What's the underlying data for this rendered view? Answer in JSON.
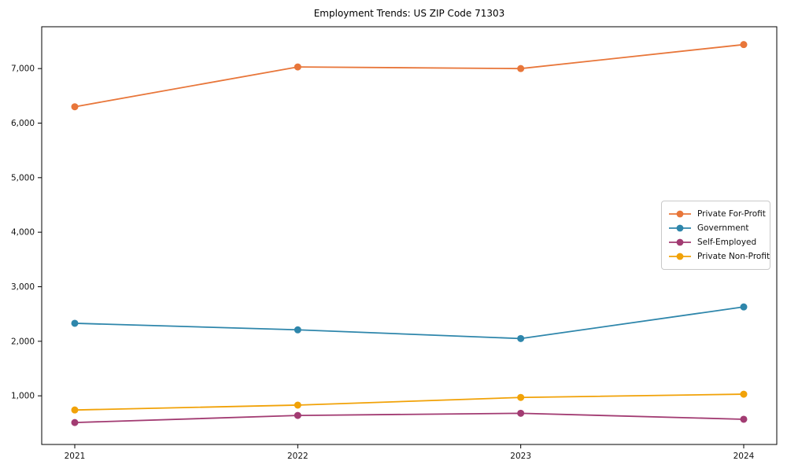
{
  "chart_data": {
    "type": "line",
    "title": "Employment Trends: US ZIP Code 71303",
    "xlabel": "",
    "ylabel": "",
    "grid": false,
    "background": "#ffffff",
    "legend_position": "right-center-inside",
    "x": [
      2021,
      2022,
      2023,
      2024
    ],
    "x_tick_labels": [
      "2021",
      "2022",
      "2023",
      "2024"
    ],
    "ylim": [
      108,
      7767
    ],
    "yticks": [
      1000,
      2000,
      3000,
      4000,
      5000,
      6000,
      7000
    ],
    "ytick_labels": [
      "1,000",
      "2,000",
      "3,000",
      "4,000",
      "5,000",
      "6,000",
      "7,000"
    ],
    "series": [
      {
        "name": "Private For-Profit",
        "color": "#e8763a",
        "marker": "circle",
        "values": [
          6300,
          7030,
          7000,
          7440
        ]
      },
      {
        "name": "Government",
        "color": "#2e86ab",
        "marker": "circle",
        "values": [
          2330,
          2210,
          2050,
          2630
        ]
      },
      {
        "name": "Self-Employed",
        "color": "#a23b72",
        "marker": "circle",
        "values": [
          510,
          640,
          680,
          570
        ]
      },
      {
        "name": "Private Non-Profit",
        "color": "#f1a208",
        "marker": "circle",
        "values": [
          740,
          830,
          970,
          1030
        ]
      }
    ]
  }
}
